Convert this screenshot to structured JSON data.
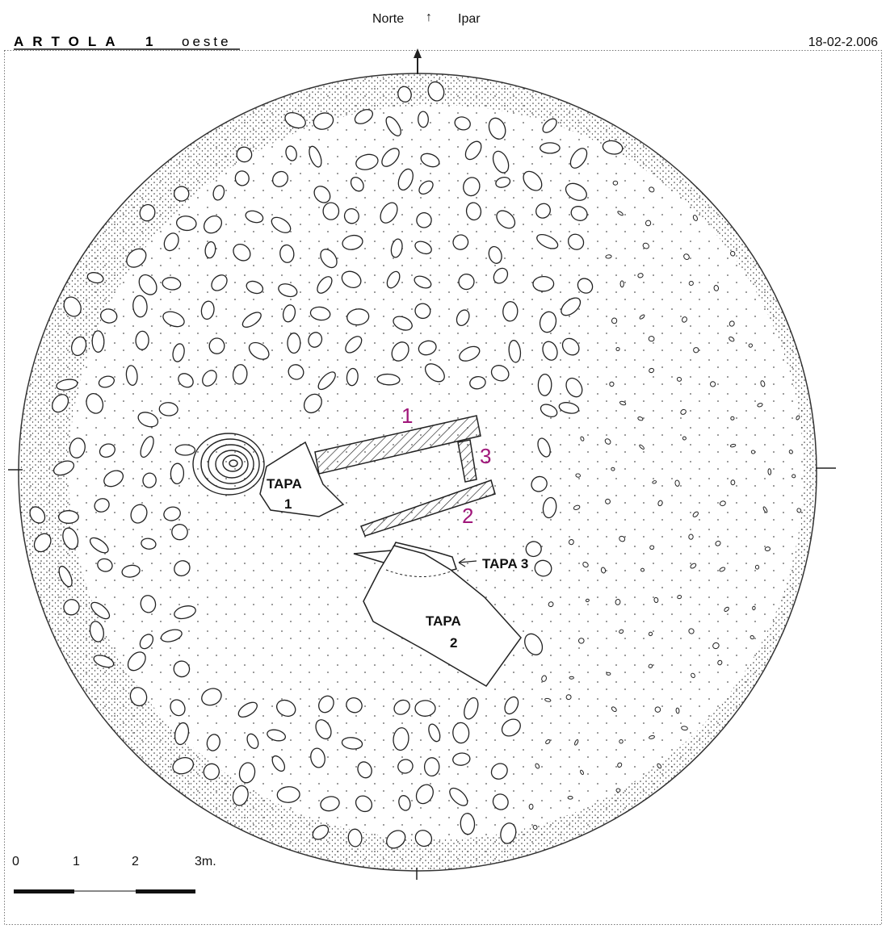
{
  "header": {
    "north_left": "Norte",
    "north_arrow": "↑",
    "north_right": "Ipar",
    "title_name": "ARTOLA",
    "title_number": "1",
    "title_side": "oeste",
    "date": "18-02-2.006"
  },
  "slabs": [
    "1",
    "2",
    "3"
  ],
  "lids": {
    "tapa1": [
      "TAPA",
      "1"
    ],
    "tapa2": [
      "TAPA",
      "2"
    ],
    "tapa3": "TAPA 3"
  },
  "scale": [
    "0",
    "1",
    "2",
    "3m."
  ]
}
